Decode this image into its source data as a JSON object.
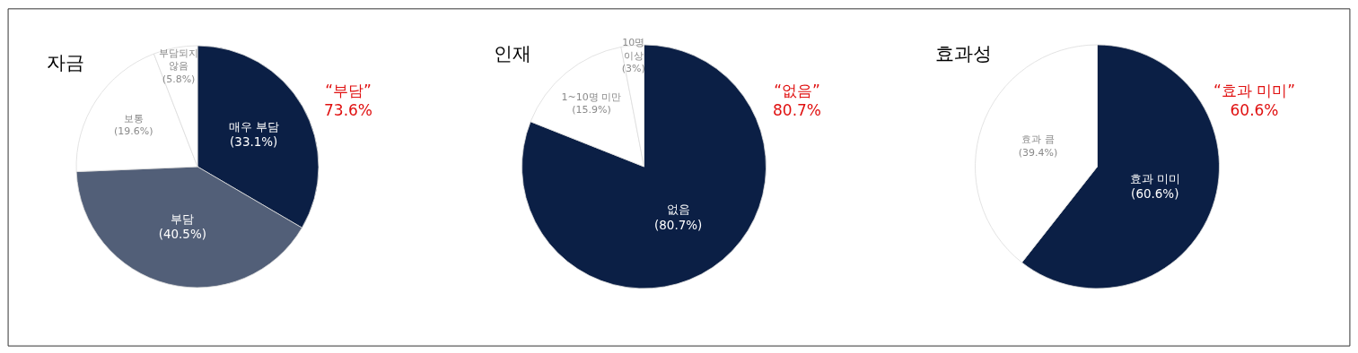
{
  "chart_data": [
    {
      "type": "pie",
      "title": "자금",
      "categories": [
        "매우 부담",
        "부담",
        "보통",
        "부담되지 않음"
      ],
      "values": [
        33.1,
        40.5,
        19.6,
        5.8
      ],
      "colors": [
        "#0b1f45",
        "#525f78",
        "#ffffff",
        "#ffffff"
      ],
      "value_labels": [
        "(33.1%)",
        "(40.5%)",
        "(19.6%)",
        "(5.8%)"
      ],
      "annotations": [
        "“부담”\n73.6%"
      ]
    },
    {
      "type": "pie",
      "title": "인재",
      "categories": [
        "없음",
        "1~10명 미만",
        "10명 이상"
      ],
      "values": [
        80.7,
        15.9,
        3
      ],
      "colors": [
        "#0b1f45",
        "#ffffff",
        "#ffffff"
      ],
      "value_labels": [
        "(80.7%)",
        "(15.9%)",
        "(3%)"
      ],
      "annotations": [
        "“없음”\n80.7%"
      ]
    },
    {
      "type": "pie",
      "title": "효과성",
      "categories": [
        "효과 미미",
        "효과 큼"
      ],
      "values": [
        60.6,
        39.4
      ],
      "colors": [
        "#0b1f45",
        "#ffffff"
      ],
      "value_labels": [
        "(60.6%)",
        "(39.4%)"
      ],
      "annotations": [
        "“효과 미미”\n60.6%"
      ]
    }
  ]
}
